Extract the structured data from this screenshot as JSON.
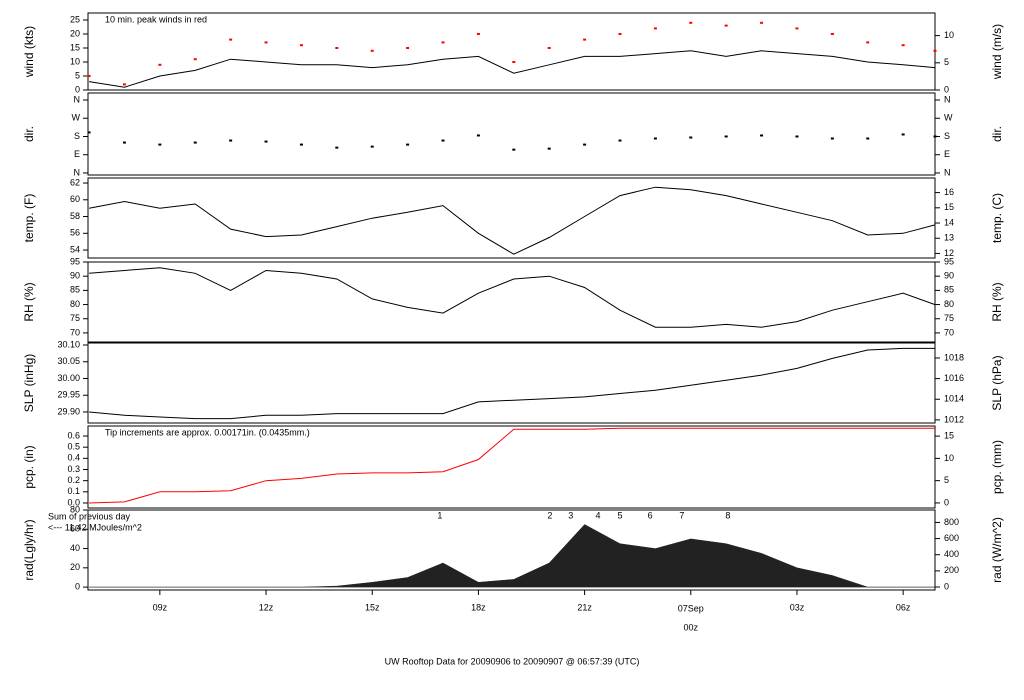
{
  "chart_data": [
    {
      "type": "line",
      "ylabel": "wind (kts)",
      "y2label": "wind (m/s)",
      "x": [
        7,
        8,
        9,
        10,
        11,
        12,
        13,
        14,
        15,
        16,
        17,
        18,
        19,
        20,
        21,
        22,
        23,
        24,
        25,
        26,
        27,
        28,
        29,
        30,
        30.9
      ],
      "xlim": [
        6.97,
        30.9
      ],
      "ylim": [
        0,
        27.5
      ],
      "yticks": [
        0,
        5,
        10,
        15,
        20,
        25
      ],
      "y2lim": [
        0,
        14.15
      ],
      "y2ticks": [
        0,
        5,
        10
      ],
      "annotations": [
        "10 min. peak winds in red"
      ],
      "annotation_color": "#dd0000",
      "series": [
        {
          "color": "#000000",
          "values": [
            3,
            1,
            5,
            7,
            11,
            10,
            9,
            9,
            8,
            9,
            11,
            12,
            6,
            9,
            12,
            12,
            13,
            14,
            12,
            14,
            13,
            12,
            10,
            9,
            8
          ]
        },
        {
          "type": "scatter",
          "color": "#ff0000",
          "values": [
            5,
            2,
            9,
            11,
            18,
            17,
            16,
            15,
            14,
            15,
            17,
            20,
            10,
            15,
            18,
            20,
            22,
            24,
            23,
            24,
            22,
            20,
            17,
            16,
            14
          ]
        }
      ]
    },
    {
      "type": "scatter",
      "ylabel": "dir.",
      "y2label": "dir.",
      "x": [
        7,
        8,
        9,
        10,
        11,
        12,
        13,
        14,
        15,
        16,
        17,
        18,
        19,
        20,
        21,
        22,
        23,
        24,
        25,
        26,
        27,
        28,
        29,
        30,
        30.9
      ],
      "xlim": [
        6.97,
        30.9
      ],
      "ylim": [
        -10,
        394.5
      ],
      "yticks": [
        {
          "value": 0,
          "label": "N"
        },
        {
          "value": 90,
          "label": "E"
        },
        {
          "value": 180,
          "label": "S"
        },
        {
          "value": 270,
          "label": "W"
        },
        {
          "value": 360,
          "label": "N"
        }
      ],
      "y2lim": [
        -10,
        394.5
      ],
      "y2ticks": [
        {
          "value": 0,
          "label": "N"
        },
        {
          "value": 90,
          "label": "E"
        },
        {
          "value": 180,
          "label": "S"
        },
        {
          "value": 270,
          "label": "W"
        },
        {
          "value": 360,
          "label": "N"
        }
      ],
      "series": [
        {
          "color": "#000000",
          "values": [
            200,
            150,
            140,
            150,
            160,
            155,
            140,
            125,
            130,
            140,
            160,
            185,
            115,
            120,
            140,
            160,
            170,
            175,
            180,
            185,
            180,
            170,
            170,
            190,
            180
          ]
        }
      ]
    },
    {
      "type": "line",
      "ylabel": "temp. (F)",
      "y2label": "temp. (C)",
      "x": [
        7,
        8,
        9,
        10,
        11,
        12,
        13,
        14,
        15,
        16,
        17,
        18,
        19,
        20,
        21,
        22,
        23,
        24,
        25,
        26,
        27,
        28,
        29,
        30,
        30.9
      ],
      "xlim": [
        6.97,
        30.9
      ],
      "ylim": [
        53.05,
        62.6
      ],
      "yticks": [
        54,
        56,
        58,
        60,
        62
      ],
      "y2lim": [
        11.7,
        16.96
      ],
      "y2ticks": [
        12,
        13,
        14,
        15,
        16
      ],
      "series": [
        {
          "color": "#000000",
          "values": [
            59,
            59.8,
            59,
            59.5,
            56.5,
            55.6,
            55.8,
            56.8,
            57.8,
            58.5,
            59.3,
            56,
            53.5,
            55.5,
            58,
            60.5,
            61.5,
            61.2,
            60.5,
            59.5,
            58.5,
            57.5,
            55.8,
            56,
            57
          ]
        }
      ]
    },
    {
      "type": "line",
      "ylabel": "RH (%)",
      "y2label": "RH (%)",
      "x": [
        7,
        8,
        9,
        10,
        11,
        12,
        13,
        14,
        15,
        16,
        17,
        18,
        19,
        20,
        21,
        22,
        23,
        24,
        25,
        26,
        27,
        28,
        29,
        30,
        30.9
      ],
      "xlim": [
        6.97,
        30.9
      ],
      "ylim": [
        66.8,
        95
      ],
      "yticks": [
        70,
        75,
        80,
        85,
        90,
        95
      ],
      "y2lim": [
        66.8,
        95
      ],
      "y2ticks": [
        70,
        75,
        80,
        85,
        90,
        95
      ],
      "series": [
        {
          "color": "#000000",
          "values": [
            91,
            92,
            93,
            91,
            85,
            92,
            91,
            89,
            82,
            79,
            77,
            84,
            89,
            90,
            86,
            78,
            72,
            72,
            73,
            72,
            74,
            78,
            81,
            84,
            80
          ]
        }
      ]
    },
    {
      "type": "line",
      "ylabel": "SLP (inHg)",
      "y2label": "SLP (hPa)",
      "x": [
        7,
        8,
        9,
        10,
        11,
        12,
        13,
        14,
        15,
        16,
        17,
        18,
        19,
        20,
        21,
        22,
        23,
        24,
        25,
        26,
        27,
        28,
        29,
        30,
        30.9
      ],
      "xlim": [
        6.97,
        30.9
      ],
      "ylim": [
        29.867,
        30.106
      ],
      "yticks": [
        {
          "value": 29.9,
          "label": "29.90"
        },
        29.95,
        {
          "value": 30,
          "label": "30.00"
        },
        30.05,
        {
          "value": 30.1,
          "label": "30.10"
        }
      ],
      "y2lim": [
        1011.7,
        1019.45
      ],
      "y2ticks": [
        1012,
        1014,
        1016,
        1018
      ],
      "series": [
        {
          "color": "#000000",
          "values": [
            29.9,
            29.89,
            29.885,
            29.88,
            29.88,
            29.89,
            29.89,
            29.895,
            29.895,
            29.895,
            29.895,
            29.93,
            29.935,
            29.94,
            29.945,
            29.955,
            29.965,
            29.98,
            29.995,
            30.01,
            30.03,
            30.06,
            30.085,
            30.09,
            30.09
          ]
        }
      ]
    },
    {
      "type": "line",
      "ylabel": "pcp. (in)",
      "y2label": "pcp. (mm)",
      "x": [
        7,
        8,
        9,
        10,
        11,
        12,
        13,
        14,
        15,
        16,
        17,
        18,
        19,
        20,
        21,
        22,
        23,
        24,
        25,
        26,
        27,
        28,
        29,
        30,
        30.9
      ],
      "xlim": [
        6.97,
        30.9
      ],
      "ylim": [
        -0.045,
        0.69
      ],
      "yticks": [
        {
          "value": 0,
          "label": "0.0"
        },
        0.1,
        0.2,
        0.3,
        0.4,
        0.5,
        0.6
      ],
      "y2lim": [
        -1.14,
        17.27
      ],
      "y2ticks": [
        0,
        5,
        10,
        15
      ],
      "annotations": [
        "Tip increments are approx. 0.00171in. (0.0435mm.)"
      ],
      "annotation_color": "#dd0000",
      "series": [
        {
          "color": "#ff0000",
          "values": [
            0,
            0.01,
            0.1,
            0.1,
            0.11,
            0.2,
            0.22,
            0.26,
            0.27,
            0.27,
            0.28,
            0.39,
            0.66,
            0.66,
            0.66,
            0.67,
            0.67,
            0.67,
            0.67,
            0.67,
            0.67,
            0.67,
            0.67,
            0.67,
            0.67
          ]
        }
      ]
    },
    {
      "type": "area",
      "ylabel": "rad(Lgly/hr)",
      "y2label": "rad (W/m^2)",
      "x": [
        7,
        8,
        9,
        10,
        11,
        12,
        13,
        14,
        15,
        16,
        17,
        18,
        19,
        20,
        21,
        22,
        23,
        24,
        25,
        26,
        27,
        28,
        29,
        30,
        30.9
      ],
      "xlim": [
        6.97,
        30.9
      ],
      "ylim": [
        -3,
        80
      ],
      "yticks": [
        0,
        20,
        40,
        60,
        80
      ],
      "y2lim": [
        -37,
        954
      ],
      "y2ticks": [
        0,
        200,
        400,
        600,
        800
      ],
      "annotations": [
        "Sum of previous day",
        "<--- 11.42 MJoules/m^2"
      ],
      "annotation_color": "#9900cc",
      "markers": [
        {
          "x": 16.91,
          "label": "1"
        },
        {
          "x": 20.02,
          "label": "2"
        },
        {
          "x": 20.61,
          "label": "3"
        },
        {
          "x": 21.38,
          "label": "4"
        },
        {
          "x": 22.0,
          "label": "5"
        },
        {
          "x": 22.85,
          "label": "6"
        },
        {
          "x": 23.75,
          "label": "7"
        },
        {
          "x": 25.05,
          "label": "8"
        }
      ],
      "marker_color": "#9900cc",
      "xticks": [
        {
          "value": 9,
          "label": "09z"
        },
        {
          "value": 12,
          "label": "12z"
        },
        {
          "value": 15,
          "label": "15z"
        },
        {
          "value": 18,
          "label": "18z"
        },
        {
          "value": 21,
          "label": "21z"
        },
        {
          "value": 24,
          "label": "00z",
          "date": "07Sep",
          "color": "#dd0000"
        },
        {
          "value": 27,
          "label": "03z"
        },
        {
          "value": 30,
          "label": "06z"
        }
      ],
      "title": "UW Rooftop Data for 20090906  to  20090907 @ 06:57:39  (UTC)",
      "title_color": "#0000cc",
      "series": [
        {
          "color": "#222222",
          "values": [
            0,
            0,
            0,
            0,
            0,
            0,
            0,
            1,
            5,
            10,
            25,
            5,
            8,
            25,
            65,
            45,
            40,
            50,
            45,
            35,
            20,
            12,
            0,
            0,
            0
          ]
        }
      ]
    }
  ]
}
